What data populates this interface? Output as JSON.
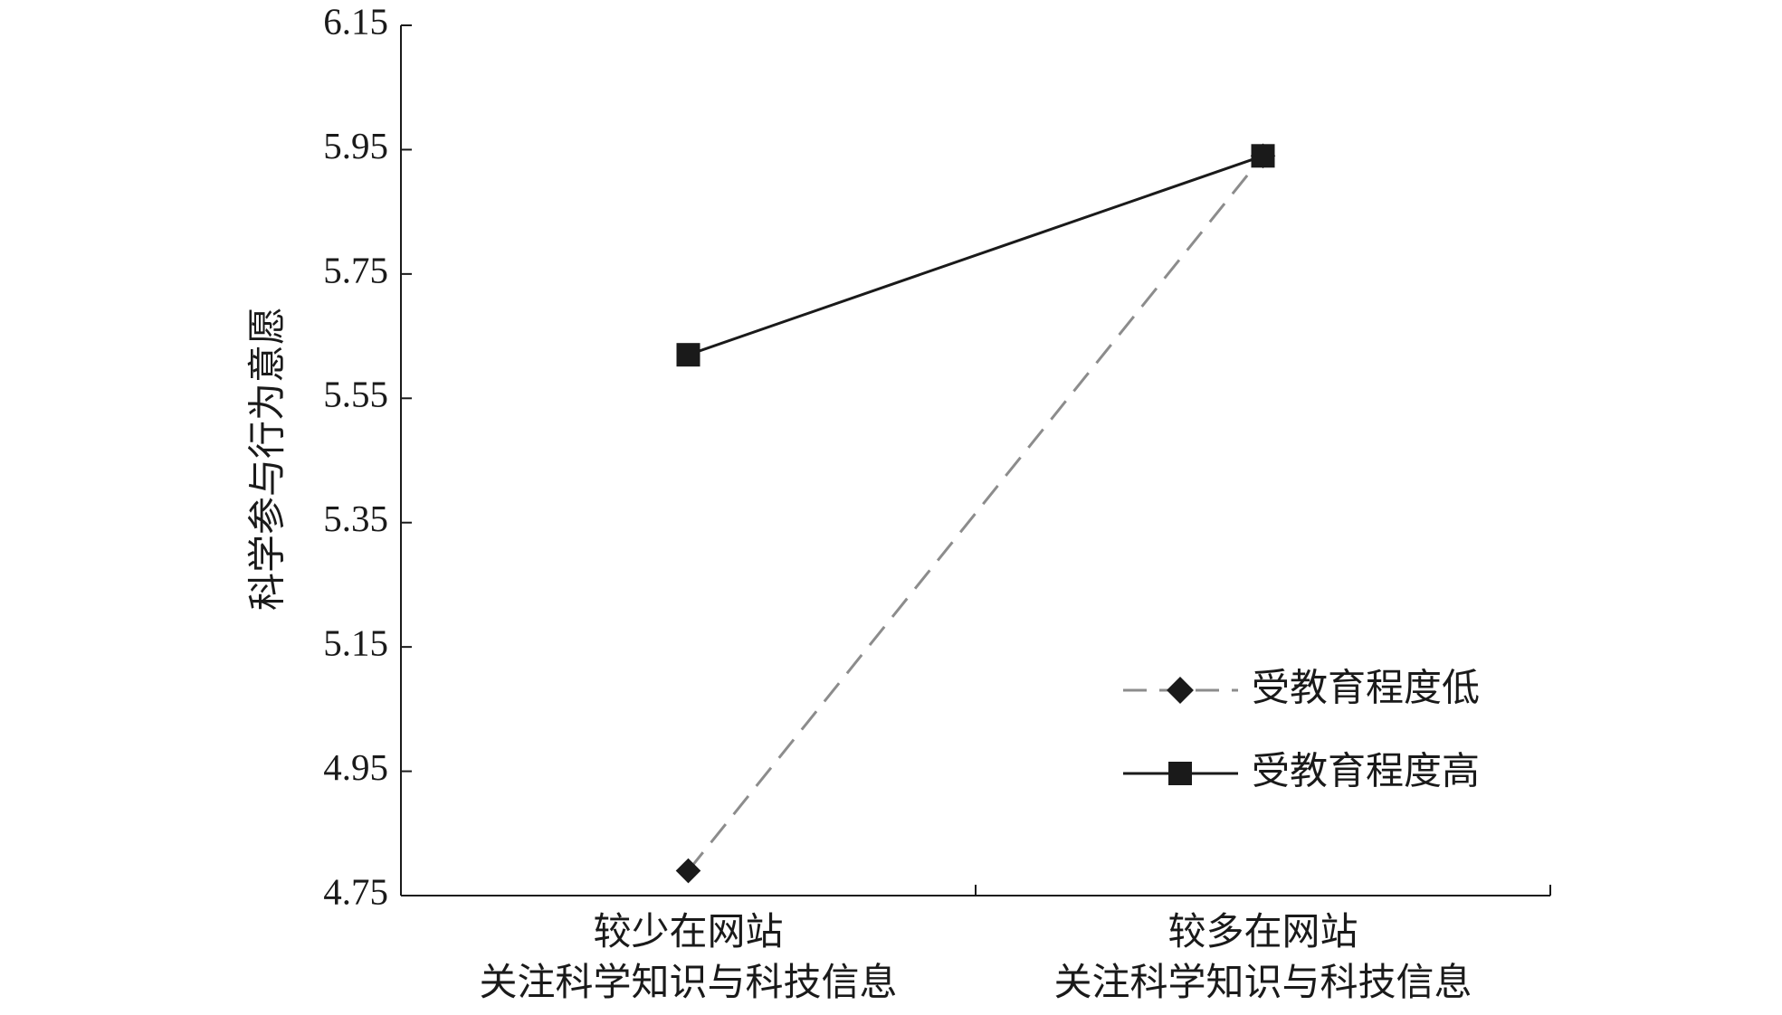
{
  "chart_data": {
    "type": "line",
    "y_label": "科学参与行为意愿",
    "categories": [
      "较少在网站\n关注科学知识与科技信息",
      "较多在网站\n关注科学知识与科技信息"
    ],
    "series": [
      {
        "name": "受教育程度低",
        "color": "#8c8c8c",
        "marker_color": "#1a1a1a",
        "line_style": "dashed",
        "marker": "diamond",
        "values": [
          4.79,
          5.94
        ]
      },
      {
        "name": "受教育程度高",
        "color": "#1a1a1a",
        "marker_color": "#1a1a1a",
        "line_style": "solid",
        "marker": "square",
        "values": [
          5.62,
          5.94
        ]
      }
    ],
    "ylim": [
      4.75,
      6.15
    ],
    "yticks": [
      4.75,
      4.95,
      5.15,
      5.35,
      5.55,
      5.75,
      5.95,
      6.15
    ],
    "grid": false,
    "legend": "lower-right"
  }
}
